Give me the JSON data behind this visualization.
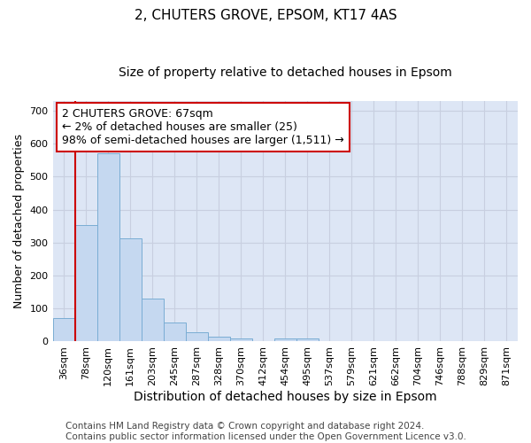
{
  "title": "2, CHUTERS GROVE, EPSOM, KT17 4AS",
  "subtitle": "Size of property relative to detached houses in Epsom",
  "xlabel": "Distribution of detached houses by size in Epsom",
  "ylabel": "Number of detached properties",
  "bar_labels": [
    "36sqm",
    "78sqm",
    "120sqm",
    "161sqm",
    "203sqm",
    "245sqm",
    "287sqm",
    "328sqm",
    "370sqm",
    "412sqm",
    "454sqm",
    "495sqm",
    "537sqm",
    "579sqm",
    "621sqm",
    "662sqm",
    "704sqm",
    "746sqm",
    "788sqm",
    "829sqm",
    "871sqm"
  ],
  "bar_values": [
    70,
    352,
    570,
    313,
    130,
    58,
    27,
    15,
    8,
    0,
    10,
    10,
    0,
    0,
    0,
    0,
    0,
    0,
    0,
    0,
    0
  ],
  "bar_color": "#c5d8f0",
  "bar_edge_color": "#7aadd4",
  "ylim": [
    0,
    730
  ],
  "yticks": [
    0,
    100,
    200,
    300,
    400,
    500,
    600,
    700
  ],
  "grid_color": "#c8cfe0",
  "bg_color": "#dde6f5",
  "annotation_text": "2 CHUTERS GROVE: 67sqm\n← 2% of detached houses are smaller (25)\n98% of semi-detached houses are larger (1,511) →",
  "annotation_box_color": "#ffffff",
  "annotation_box_edge_color": "#cc0000",
  "vline_color": "#cc0000",
  "vline_x_index": 0.5,
  "footer_line1": "Contains HM Land Registry data © Crown copyright and database right 2024.",
  "footer_line2": "Contains public sector information licensed under the Open Government Licence v3.0.",
  "title_fontsize": 11,
  "subtitle_fontsize": 10,
  "xlabel_fontsize": 10,
  "ylabel_fontsize": 9,
  "tick_fontsize": 8,
  "annotation_fontsize": 9,
  "footer_fontsize": 7.5
}
